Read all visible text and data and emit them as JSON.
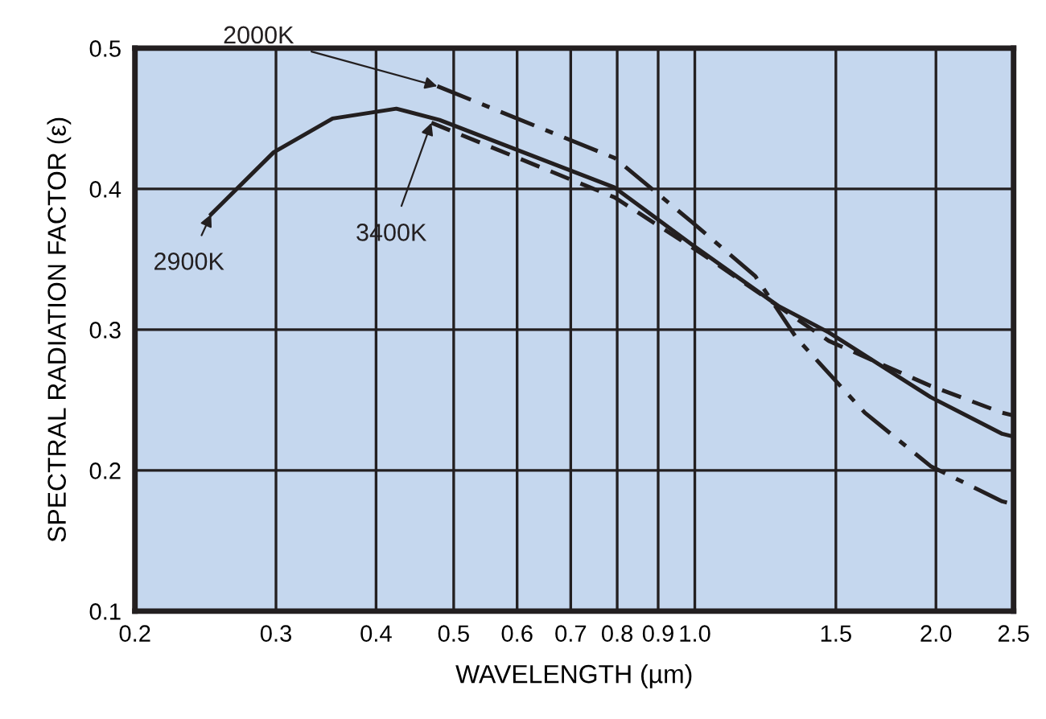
{
  "chart_data": {
    "type": "line",
    "xlabel": "WAVELENGTH (µm)",
    "ylabel": "SPECTRAL RADIATION FACTOR (ε)",
    "log": "x",
    "grid": true,
    "xlim": [
      0.2,
      2.5
    ],
    "ylim": [
      0.1,
      0.5
    ],
    "xticks": [
      0.2,
      0.3,
      0.4,
      0.5,
      0.6,
      0.7,
      0.8,
      0.9,
      {
        "value": 1,
        "label": "1.0"
      },
      1.5,
      {
        "value": 2,
        "label": "2.0"
      },
      2.5
    ],
    "yticks": [
      0.1,
      0.2,
      0.3,
      0.4,
      0.5
    ],
    "series": [
      {
        "name": "2000K",
        "color": "#231f20",
        "line_style": "dashdot",
        "x": [
          0.477,
          0.794,
          0.989,
          1.19,
          1.34,
          1.63,
          1.97,
          2.42,
          2.5
        ],
        "values": [
          0.473,
          0.422,
          0.377,
          0.338,
          0.294,
          0.241,
          0.203,
          0.178,
          0.176
        ]
      },
      {
        "name": "3400K",
        "color": "#231f20",
        "line_style": "dashed",
        "x": [
          0.469,
          0.794,
          1.02,
          1.47,
          1.97,
          2.42,
          2.5
        ],
        "values": [
          0.447,
          0.394,
          0.354,
          0.292,
          0.26,
          0.241,
          0.239
        ]
      },
      {
        "name": "2900K",
        "color": "#231f20",
        "line_style": "solid",
        "x": [
          0.249,
          0.298,
          0.353,
          0.424,
          0.48,
          0.794,
          0.989,
          1.27,
          1.47,
          1.97,
          2.42,
          2.5
        ],
        "values": [
          0.382,
          0.426,
          0.45,
          0.457,
          0.449,
          0.401,
          0.361,
          0.317,
          0.298,
          0.252,
          0.226,
          0.224
        ]
      }
    ]
  }
}
